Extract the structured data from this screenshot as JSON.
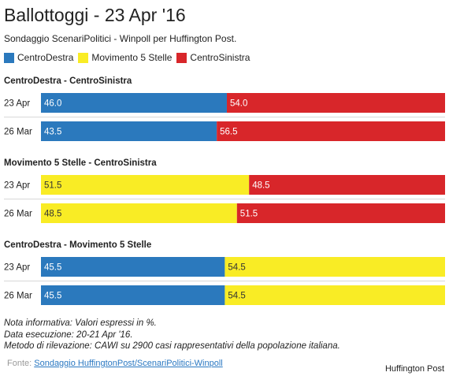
{
  "header": {
    "title": "Ballottoggi - 23 Apr '16",
    "subtitle": "Sondaggio ScenariPolitici - Winpoll per Huffington Post."
  },
  "legend": [
    {
      "label": "CentroDestra",
      "color": "#2b79bd"
    },
    {
      "label": "Movimento 5 Stelle",
      "color": "#f9ec25"
    },
    {
      "label": "CentroSinistra",
      "color": "#d8262a"
    }
  ],
  "chart_data": {
    "type": "bar",
    "stacked": true,
    "orientation": "horizontal",
    "xlim": [
      0,
      100
    ],
    "grid": false,
    "legend_position": "top-left",
    "groups": [
      {
        "title": "CentroDestra - CentroSinistra",
        "rows": [
          {
            "label": "23 Apr",
            "segments": [
              {
                "series": "CentroDestra",
                "value": 46.0,
                "text": "46.0"
              },
              {
                "series": "CentroSinistra",
                "value": 54.0,
                "text": "54.0"
              }
            ]
          },
          {
            "label": "26 Mar",
            "segments": [
              {
                "series": "CentroDestra",
                "value": 43.5,
                "text": "43.5"
              },
              {
                "series": "CentroSinistra",
                "value": 56.5,
                "text": "56.5"
              }
            ]
          }
        ]
      },
      {
        "title": "Movimento 5 Stelle - CentroSinistra",
        "rows": [
          {
            "label": "23 Apr",
            "segments": [
              {
                "series": "Movimento 5 Stelle",
                "value": 51.5,
                "text": "51.5"
              },
              {
                "series": "CentroSinistra",
                "value": 48.5,
                "text": "48.5"
              }
            ]
          },
          {
            "label": "26 Mar",
            "segments": [
              {
                "series": "Movimento 5 Stelle",
                "value": 48.5,
                "text": "48.5"
              },
              {
                "series": "CentroSinistra",
                "value": 51.5,
                "text": "51.5"
              }
            ]
          }
        ]
      },
      {
        "title": "CentroDestra - Movimento 5 Stelle",
        "rows": [
          {
            "label": "23 Apr",
            "segments": [
              {
                "series": "CentroDestra",
                "value": 45.5,
                "text": "45.5"
              },
              {
                "series": "Movimento 5 Stelle",
                "value": 54.5,
                "text": "54.5"
              }
            ]
          },
          {
            "label": "26 Mar",
            "segments": [
              {
                "series": "CentroDestra",
                "value": 45.5,
                "text": "45.5"
              },
              {
                "series": "Movimento 5 Stelle",
                "value": 54.5,
                "text": "54.5"
              }
            ]
          }
        ]
      }
    ]
  },
  "notes": {
    "line1": "Nota informativa: Valori espressi in %.",
    "line2": "Data esecuzione: 20-21 Apr '16.",
    "line3": "Metodo di rilevazione: CAWI su 2900 casi rappresentativi della popolazione italiana."
  },
  "source": {
    "prefix": "Fonte:",
    "link_text": "Sondaggio HuffingtonPost/ScenariPolitici-Winpoll"
  },
  "credit": "Huffington Post"
}
